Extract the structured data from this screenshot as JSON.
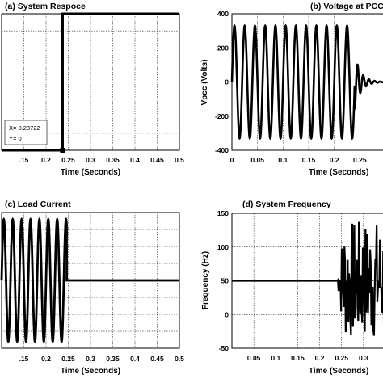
{
  "chart_data": [
    {
      "type": "line",
      "title": "(a) System Respoce",
      "xlabel": "Time (Seconds)",
      "ylabel": "",
      "xlim": [
        0.1,
        0.5
      ],
      "ylim": [
        0,
        1
      ],
      "x_ticks": [
        ".15",
        "0.2",
        "0.25",
        "0.3",
        "0.35",
        "0.4",
        "0.45",
        "0.5"
      ],
      "x_tick_values": [
        0.15,
        0.2,
        0.25,
        0.3,
        0.35,
        0.4,
        0.45,
        0.5
      ],
      "grid": true,
      "series": [
        {
          "x": [
            0.1,
            0.23722,
            0.23722,
            0.5
          ],
          "y": [
            0,
            0,
            1,
            1
          ]
        }
      ],
      "datatip": {
        "x_text": "X= 0.23722",
        "y_text": "Y= 0"
      }
    },
    {
      "type": "line",
      "title": "(b) Voltage at PCC",
      "xlabel": "Time (Seconds)",
      "ylabel": "Vpcc (Volts)",
      "xlim": [
        0,
        0.3
      ],
      "ylim": [
        -400,
        400
      ],
      "x_ticks": [
        "0",
        "0.05",
        "0.1",
        "0.15",
        "0.2",
        "0.25"
      ],
      "x_tick_values": [
        0,
        0.05,
        0.1,
        0.15,
        0.2,
        0.25
      ],
      "y_ticks": [
        "-400",
        "-200",
        "0",
        "200",
        "400"
      ],
      "y_tick_values": [
        -400,
        -200,
        0,
        200,
        400
      ],
      "grid": true,
      "series": [
        {
          "waveform": "sine",
          "frequency_hz": 50,
          "amplitude": 330,
          "until": 0.24,
          "after": "decaying oscillation to 0"
        }
      ]
    },
    {
      "type": "line",
      "title": "(c) Load Current",
      "xlabel": "Time (Seconds)",
      "ylabel": "",
      "xlim": [
        0.1,
        0.5
      ],
      "ylim": [
        -1,
        1
      ],
      "x_ticks": [
        ".15",
        "0.2",
        "0.25",
        "0.3",
        "0.35",
        "0.4",
        "0.45",
        "0.5"
      ],
      "x_tick_values": [
        0.15,
        0.2,
        0.25,
        0.3,
        0.35,
        0.4,
        0.45,
        0.5
      ],
      "grid": true,
      "series": [
        {
          "waveform": "sine",
          "frequency_hz": 50,
          "amplitude": 0.9,
          "until": 0.2465,
          "after": 0
        }
      ]
    },
    {
      "type": "line",
      "title": "(d) System Frequency",
      "xlabel": "Time (Seconds)",
      "ylabel": "Frequency (Hz)",
      "xlim": [
        0,
        0.35
      ],
      "ylim": [
        -50,
        150
      ],
      "x_ticks": [
        "0.05",
        "0.1",
        "0.15",
        "0.2",
        "0.25",
        "0.3"
      ],
      "x_tick_values": [
        0.05,
        0.1,
        0.15,
        0.2,
        0.25,
        0.3
      ],
      "y_ticks": [
        "-50",
        "0",
        "50",
        "100",
        "150"
      ],
      "y_tick_values": [
        -50,
        0,
        50,
        100,
        150
      ],
      "grid": true,
      "series": [
        {
          "constant": 50,
          "until": 0.24,
          "after": "oscillation between about -40 and 140"
        }
      ]
    }
  ]
}
